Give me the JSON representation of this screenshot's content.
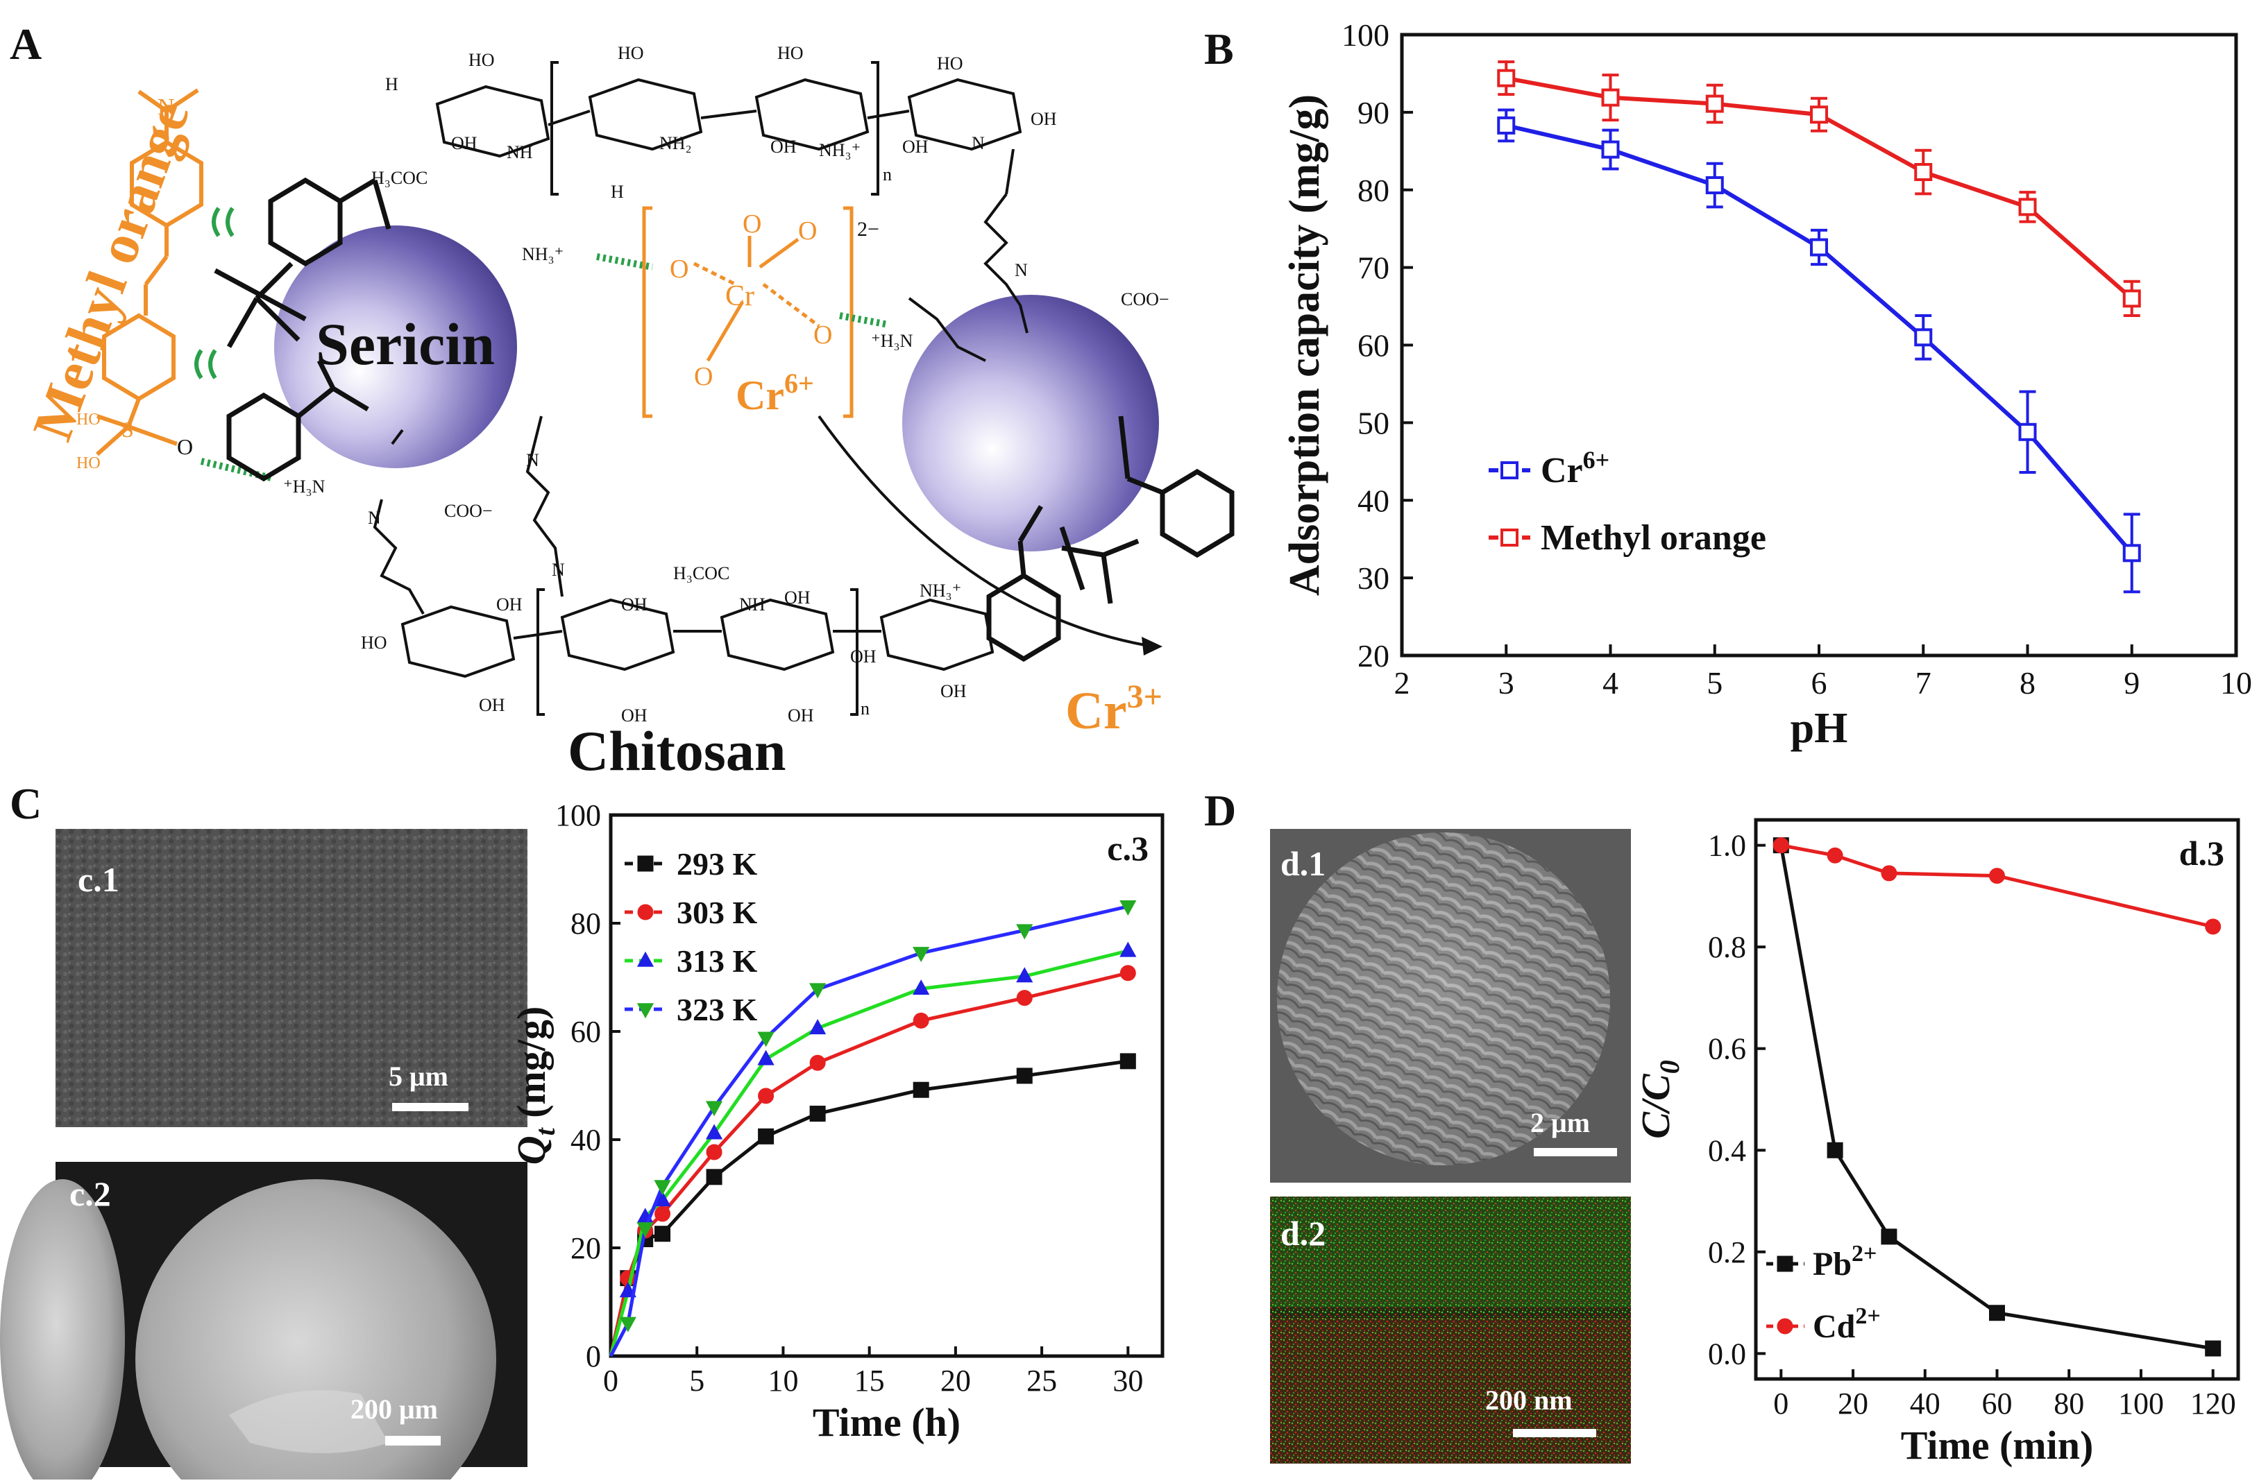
{
  "panels": {
    "A": "A",
    "B": "B",
    "C": "C",
    "D": "D"
  },
  "schematic": {
    "methyl_orange": "Methyl orange",
    "sericin": "Sericin",
    "chitosan": "Chitosan",
    "cr6": "Cr",
    "cr6_sup": "6+",
    "cr3": "Cr",
    "cr3_sup": "3+",
    "chromate_charge": "2−",
    "labels": {
      "nh3_1": "NH₃⁺",
      "nh3_2": "⁺H₃N",
      "nh3_3": "⁺H₃N",
      "coo_1": "COO−",
      "coo_2": "COO−",
      "acetyl_top": "H₃COC",
      "acetyl_bot": "H₃COC",
      "oh": "OH",
      "ho": "HO",
      "nh": "NH",
      "nh2": "NH₂",
      "nh3p": "NH₃⁺",
      "n": "N",
      "n_sub": "n",
      "o": "O",
      "cr": "Cr",
      "h": "H",
      "s": "S"
    }
  },
  "chart_data": [
    {
      "id": "B",
      "type": "line",
      "x": [
        3,
        4,
        5,
        6,
        7,
        8,
        9
      ],
      "series": [
        {
          "name": "Cr",
          "name_sup": "6+",
          "color": "#1f1fe6",
          "values": [
            88.3,
            85.2,
            80.6,
            72.6,
            61.0,
            48.8,
            33.2
          ],
          "errors": [
            2.0,
            2.5,
            2.8,
            2.2,
            2.8,
            5.2,
            5.0
          ]
        },
        {
          "name": "Methyl orange",
          "name_sup": "",
          "color": "#e62020",
          "values": [
            94.4,
            91.9,
            91.1,
            89.7,
            82.3,
            77.8,
            66.0
          ],
          "errors": [
            2.1,
            2.9,
            2.4,
            2.1,
            2.8,
            1.9,
            2.2
          ]
        }
      ],
      "xlabel": "pH",
      "ylabel": "Adsorption capacity (mg/g)",
      "xlim": [
        2,
        10
      ],
      "ylim": [
        20,
        100
      ],
      "xticks": [
        2,
        3,
        4,
        5,
        6,
        7,
        8,
        9,
        10
      ],
      "yticks": [
        20,
        30,
        40,
        50,
        60,
        70,
        80,
        90,
        100
      ],
      "legend": "bottom-left"
    },
    {
      "id": "c.3",
      "type": "line",
      "panel_label": "c.3",
      "series": [
        {
          "name": "293 K",
          "color": "#111111",
          "marker": "square",
          "x": [
            0,
            1,
            2,
            3,
            6,
            9,
            12,
            18,
            24,
            30
          ],
          "values": [
            0,
            14.4,
            21.6,
            22.6,
            33.1,
            40.6,
            44.8,
            49.2,
            51.8,
            54.5
          ]
        },
        {
          "name": "303 K",
          "color": "#e62020",
          "marker": "circle",
          "x": [
            0,
            1,
            2,
            3,
            6,
            9,
            12,
            18,
            24,
            30
          ],
          "values": [
            0,
            14.4,
            23.2,
            26.3,
            37.7,
            48.1,
            54.2,
            62.0,
            66.2,
            70.8
          ]
        },
        {
          "name": "313 K",
          "color": "#1f1fe6",
          "marker": "triangle-up",
          "x": [
            0,
            1,
            2,
            3,
            6,
            9,
            12,
            18,
            24,
            30
          ],
          "values": [
            0,
            12.0,
            25.7,
            28.8,
            41.2,
            54.9,
            60.6,
            67.9,
            70.2,
            74.9
          ]
        },
        {
          "name": "323 K",
          "color": "#22aa22",
          "marker": "triangle-down",
          "x": [
            0,
            1,
            2,
            3,
            6,
            9,
            12,
            18,
            24,
            30
          ],
          "values": [
            0,
            6.1,
            23.6,
            31.4,
            46.0,
            58.8,
            67.8,
            74.5,
            78.7,
            83.1
          ]
        }
      ],
      "line_colors": [
        "#111111",
        "#e62020",
        "#22dd22",
        "#2a2aff"
      ],
      "xlabel": "Time (h)",
      "ylabel": "Q",
      "ylabel_sub": "t",
      "ylabel_unit": " (mg/g)",
      "xlim": [
        0,
        32
      ],
      "ylim": [
        0,
        100
      ],
      "xticks": [
        0,
        5,
        10,
        15,
        20,
        25,
        30
      ],
      "yticks": [
        0,
        20,
        40,
        60,
        80,
        100
      ],
      "legend": "top-left"
    },
    {
      "id": "d.3",
      "type": "line",
      "panel_label": "d.3",
      "x": [
        0,
        15,
        30,
        60,
        120
      ],
      "series": [
        {
          "name": "Pb",
          "name_sup": "2+",
          "color": "#111111",
          "marker": "square",
          "values": [
            1.0,
            0.4,
            0.23,
            0.08,
            0.01
          ]
        },
        {
          "name": "Cd",
          "name_sup": "2+",
          "color": "#e62020",
          "marker": "circle",
          "values": [
            1.0,
            0.98,
            0.945,
            0.94,
            0.84
          ]
        }
      ],
      "xlabel": "Time (min)",
      "ylabel": "C/C",
      "ylabel_sub": "0",
      "xlim": [
        -7,
        127
      ],
      "ylim": [
        -0.05,
        1.05
      ],
      "xticks": [
        0,
        20,
        40,
        60,
        80,
        100,
        120
      ],
      "xtick_labels": [
        "0",
        "20",
        "40",
        "60",
        "80",
        "100",
        "120"
      ],
      "yticks": [
        0.0,
        0.2,
        0.4,
        0.6,
        0.8,
        1.0
      ],
      "ytick_labels": [
        "0.0",
        "0.2",
        "0.4",
        "0.6",
        "0.8",
        "1.0"
      ],
      "legend": "bottom-left"
    }
  ],
  "images": {
    "c1": {
      "label": "c.1",
      "scale": "5 μm"
    },
    "c2": {
      "label": "c.2",
      "scale": "200 μm"
    },
    "d1": {
      "label": "d.1",
      "scale": "2 μm"
    },
    "d2": {
      "label": "d.2",
      "scale": "200 nm"
    }
  }
}
